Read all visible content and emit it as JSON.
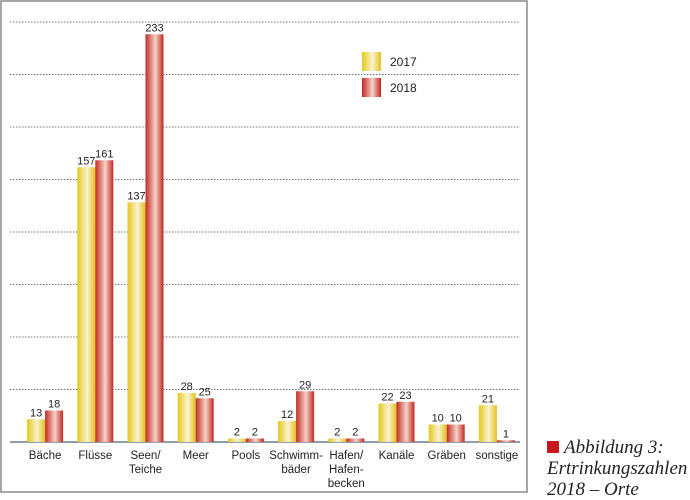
{
  "chart_data": {
    "type": "bar",
    "title": "",
    "xlabel": "",
    "ylabel": "",
    "ylim": [
      0,
      240
    ],
    "grid": true,
    "grid_step": 30,
    "legend_position": "top-right",
    "categories": [
      "Bäche",
      "Flüsse",
      "Seen/\nTeiche",
      "Meer",
      "Pools",
      "Schwimm-\nbäder",
      "Hafen/\nHafen-\nbecken",
      "Kanäle",
      "Gräben",
      "sonstige"
    ],
    "series": [
      {
        "name": "2017",
        "color": "#e8d020",
        "values": [
          13,
          157,
          137,
          28,
          2,
          12,
          2,
          22,
          10,
          21
        ]
      },
      {
        "name": "2018",
        "color": "#c8302a",
        "values": [
          18,
          161,
          233,
          25,
          2,
          29,
          2,
          23,
          10,
          1
        ]
      }
    ]
  },
  "caption": {
    "line1": "Abbildung 3:",
    "line2": "Ertrinkungszahlen",
    "line3": "2018 – Orte",
    "marker_color": "#c8161d"
  }
}
